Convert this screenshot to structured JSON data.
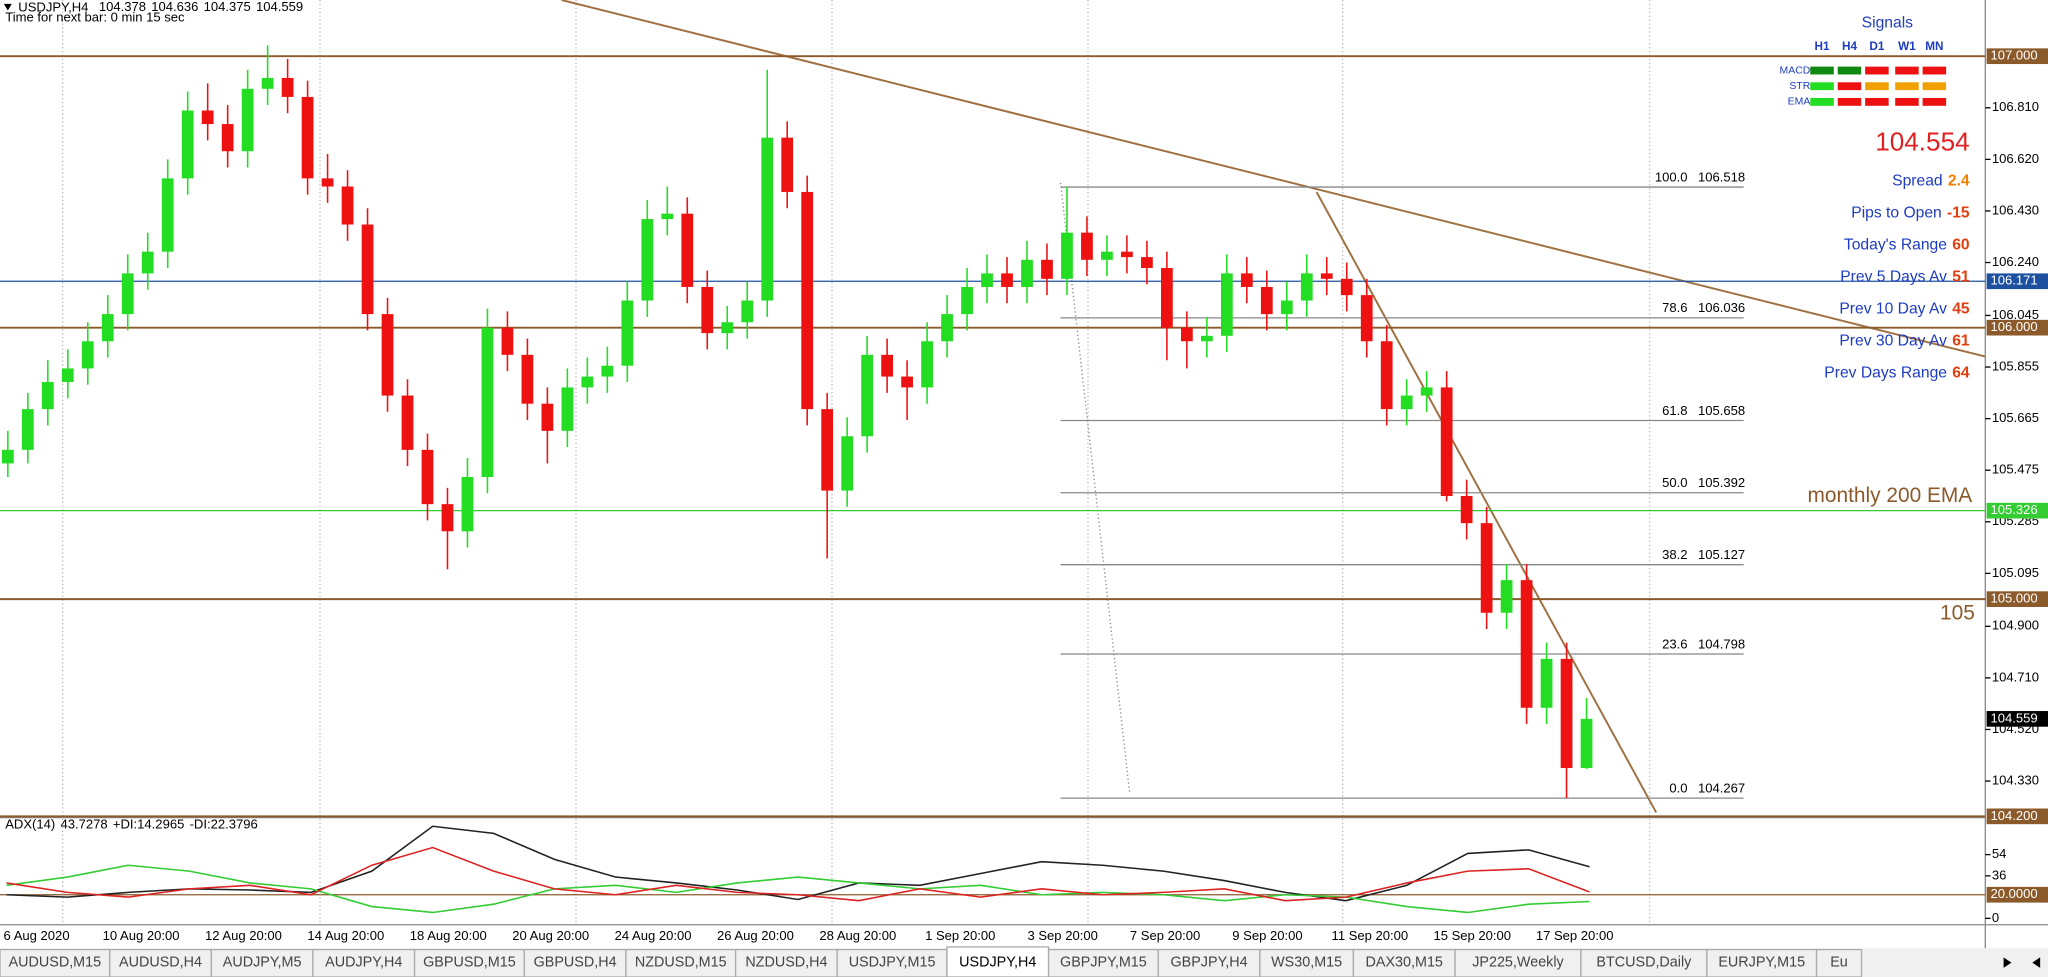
{
  "header": {
    "symbol": "USDJPY,H4",
    "ohlc": [
      104.378,
      104.636,
      104.375,
      104.559
    ],
    "timer": "Time for next bar: 0 min 15 sec"
  },
  "chart": {
    "type": "candlestick",
    "up_color": "#22dd22",
    "down_color": "#ee1111",
    "ylim": [
      104.2,
      107.207
    ],
    "yticks": [
      {
        "value": 106.81,
        "label": "106.810"
      },
      {
        "value": 106.62,
        "label": "106.620"
      },
      {
        "value": 106.43,
        "label": "106.430"
      },
      {
        "value": 106.24,
        "label": "106.240"
      },
      {
        "value": 106.045,
        "label": "106.045"
      },
      {
        "value": 105.855,
        "label": "105.855"
      },
      {
        "value": 105.665,
        "label": "105.665"
      },
      {
        "value": 105.475,
        "label": "105.475"
      },
      {
        "value": 105.285,
        "label": "105.285"
      },
      {
        "value": 105.095,
        "label": "105.095"
      },
      {
        "value": 104.9,
        "label": "104.900"
      },
      {
        "value": 104.71,
        "label": "104.710"
      },
      {
        "value": 104.52,
        "label": "104.520"
      },
      {
        "value": 104.33,
        "label": "104.330"
      }
    ],
    "levels": [
      {
        "value": 107,
        "label": "107.000",
        "color": "#8b5a2b",
        "line": true
      },
      {
        "value": 106.171,
        "label": "106.171",
        "color": "#1e50a0",
        "line": true
      },
      {
        "value": 106,
        "label": "106.000",
        "color": "#8b5a2b",
        "line": true
      },
      {
        "value": 105.326,
        "label": "105.326",
        "color": "#33cc33",
        "line": true
      },
      {
        "value": 105,
        "label": "105.000",
        "color": "#8b5a2b",
        "line": true
      },
      {
        "value": 104.559,
        "label": "104.559",
        "color": "#000000",
        "line": false
      },
      {
        "value": 104.2,
        "label": "104.200",
        "color": "#8b5a2b",
        "line": true
      }
    ],
    "fib": [
      {
        "ratio": "100.0",
        "price": 106.518
      },
      {
        "ratio": "78.6",
        "price": 106.036
      },
      {
        "ratio": "61.8",
        "price": 105.658
      },
      {
        "ratio": "50.0",
        "price": 105.392
      },
      {
        "ratio": "38.2",
        "price": 105.127
      },
      {
        "ratio": "23.6",
        "price": 104.798
      },
      {
        "ratio": "0.0",
        "price": 104.267
      }
    ],
    "candles": [
      [
        105.5,
        105.62,
        105.45,
        105.55
      ],
      [
        105.55,
        105.76,
        105.5,
        105.7
      ],
      [
        105.7,
        105.88,
        105.64,
        105.8
      ],
      [
        105.8,
        105.92,
        105.74,
        105.85
      ],
      [
        105.85,
        106.02,
        105.79,
        105.95
      ],
      [
        105.95,
        106.12,
        105.89,
        106.05
      ],
      [
        106.05,
        106.27,
        105.99,
        106.2
      ],
      [
        106.2,
        106.35,
        106.14,
        106.28
      ],
      [
        106.28,
        106.62,
        106.22,
        106.55
      ],
      [
        106.55,
        106.87,
        106.49,
        106.8
      ],
      [
        106.8,
        106.9,
        106.69,
        106.75
      ],
      [
        106.75,
        106.82,
        106.59,
        106.65
      ],
      [
        106.65,
        106.95,
        106.59,
        106.88
      ],
      [
        106.88,
        107.04,
        106.82,
        106.92
      ],
      [
        106.92,
        106.99,
        106.79,
        106.85
      ],
      [
        106.85,
        106.91,
        106.49,
        106.55
      ],
      [
        106.55,
        106.64,
        106.46,
        106.52
      ],
      [
        106.52,
        106.58,
        106.32,
        106.38
      ],
      [
        106.38,
        106.44,
        105.99,
        106.05
      ],
      [
        106.05,
        106.11,
        105.69,
        105.75
      ],
      [
        105.75,
        105.81,
        105.49,
        105.55
      ],
      [
        105.55,
        105.61,
        105.29,
        105.35
      ],
      [
        105.35,
        105.41,
        105.11,
        105.25
      ],
      [
        105.25,
        105.52,
        105.19,
        105.45
      ],
      [
        105.45,
        106.07,
        105.39,
        106.0
      ],
      [
        106.0,
        106.06,
        105.84,
        105.9
      ],
      [
        105.9,
        105.96,
        105.66,
        105.72
      ],
      [
        105.72,
        105.78,
        105.5,
        105.62
      ],
      [
        105.62,
        105.85,
        105.56,
        105.78
      ],
      [
        105.78,
        105.89,
        105.72,
        105.82
      ],
      [
        105.82,
        105.93,
        105.76,
        105.86
      ],
      [
        105.86,
        106.17,
        105.8,
        106.1
      ],
      [
        106.1,
        106.47,
        106.04,
        106.4
      ],
      [
        106.4,
        106.52,
        106.34,
        106.42
      ],
      [
        106.42,
        106.48,
        106.09,
        106.15
      ],
      [
        106.15,
        106.21,
        105.92,
        105.98
      ],
      [
        105.98,
        106.08,
        105.92,
        106.02
      ],
      [
        106.02,
        106.17,
        105.96,
        106.1
      ],
      [
        106.1,
        106.95,
        106.04,
        106.7
      ],
      [
        106.7,
        106.76,
        106.44,
        106.5
      ],
      [
        106.5,
        106.56,
        105.64,
        105.7
      ],
      [
        105.7,
        105.76,
        105.15,
        105.4
      ],
      [
        105.4,
        105.67,
        105.34,
        105.6
      ],
      [
        105.6,
        105.97,
        105.54,
        105.9
      ],
      [
        105.9,
        105.96,
        105.76,
        105.82
      ],
      [
        105.82,
        105.88,
        105.66,
        105.78
      ],
      [
        105.78,
        106.02,
        105.72,
        105.95
      ],
      [
        105.95,
        106.12,
        105.89,
        106.05
      ],
      [
        106.05,
        106.22,
        105.99,
        106.15
      ],
      [
        106.15,
        106.27,
        106.09,
        106.2
      ],
      [
        106.2,
        106.26,
        106.09,
        106.15
      ],
      [
        106.15,
        106.32,
        106.09,
        106.25
      ],
      [
        106.25,
        106.31,
        106.12,
        106.18
      ],
      [
        106.18,
        106.52,
        106.12,
        106.35
      ],
      [
        106.35,
        106.41,
        106.19,
        106.25
      ],
      [
        106.25,
        106.34,
        106.19,
        106.28
      ],
      [
        106.28,
        106.34,
        106.2,
        106.26
      ],
      [
        106.26,
        106.32,
        106.16,
        106.22
      ],
      [
        106.22,
        106.28,
        105.88,
        106.0
      ],
      [
        106.0,
        106.06,
        105.85,
        105.95
      ],
      [
        105.95,
        106.04,
        105.89,
        105.97
      ],
      [
        105.97,
        106.27,
        105.91,
        106.2
      ],
      [
        106.2,
        106.26,
        106.09,
        106.15
      ],
      [
        106.15,
        106.21,
        105.99,
        106.05
      ],
      [
        106.05,
        106.17,
        105.99,
        106.1
      ],
      [
        106.1,
        106.27,
        106.04,
        106.2
      ],
      [
        106.2,
        106.26,
        106.12,
        106.18
      ],
      [
        106.18,
        106.24,
        106.06,
        106.12
      ],
      [
        106.12,
        106.18,
        105.89,
        105.95
      ],
      [
        105.95,
        106.01,
        105.64,
        105.7
      ],
      [
        105.7,
        105.81,
        105.64,
        105.75
      ],
      [
        105.75,
        105.84,
        105.69,
        105.78
      ],
      [
        105.78,
        105.84,
        105.36,
        105.38
      ],
      [
        105.38,
        105.44,
        105.22,
        105.28
      ],
      [
        105.28,
        105.34,
        104.89,
        104.95
      ],
      [
        104.95,
        105.13,
        104.89,
        105.07
      ],
      [
        105.07,
        105.13,
        104.54,
        104.6
      ],
      [
        104.6,
        104.84,
        104.54,
        104.78
      ],
      [
        104.78,
        104.84,
        104.267,
        104.378
      ],
      [
        104.378,
        104.636,
        104.375,
        104.559
      ]
    ],
    "dates": [
      "6 Aug 2020",
      "10 Aug 20:00",
      "12 Aug 20:00",
      "14 Aug 20:00",
      "18 Aug 20:00",
      "20 Aug 20:00",
      "24 Aug 20:00",
      "26 Aug 20:00",
      "28 Aug 20:00",
      "1 Sep 20:00",
      "3 Sep 20:00",
      "7 Sep 20:00",
      "9 Sep 20:00",
      "11 Sep 20:00",
      "15 Sep 20:00",
      "17 Sep 20:00"
    ]
  },
  "adx": {
    "type": "line",
    "ylim": [
      -5.4,
      85.3
    ],
    "yticks": [
      54,
      36,
      {
        "value": 20,
        "label": "20.0000"
      },
      0
    ],
    "series": [
      {
        "name": "ADX(14)",
        "color": "#222222",
        "values": [
          20,
          18,
          22,
          25,
          24,
          22,
          40,
          78,
          72,
          50,
          35,
          30,
          24,
          16,
          30,
          28,
          38,
          48,
          45,
          40,
          32,
          22,
          15,
          28,
          55,
          58,
          43.7278
        ]
      },
      {
        "name": "+DI:",
        "color": "#33cc33",
        "values": [
          28,
          35,
          45,
          40,
          30,
          25,
          10,
          5,
          12,
          25,
          28,
          22,
          30,
          35,
          30,
          25,
          28,
          20,
          22,
          20,
          15,
          20,
          18,
          10,
          5,
          12,
          14.2965
        ]
      },
      {
        "name": "-DI:",
        "color": "#dd2222",
        "values": [
          30,
          22,
          18,
          25,
          28,
          20,
          45,
          60,
          40,
          25,
          20,
          28,
          22,
          20,
          15,
          25,
          18,
          25,
          20,
          22,
          25,
          15,
          18,
          30,
          40,
          42,
          22.3796
        ]
      }
    ]
  },
  "signals": {
    "title": "Signals",
    "columns": [
      "H1",
      "H4",
      "D1",
      "W1",
      "MN"
    ],
    "rows": [
      {
        "name": "MACD",
        "colors": [
          "#118811",
          "#118811",
          "#ee1111",
          "#ee1111",
          "#ee1111"
        ]
      },
      {
        "name": "STR",
        "colors": [
          "#22dd22",
          "#ee1111",
          "#f0a000",
          "#f0a000",
          "#f0a000"
        ]
      },
      {
        "name": "EMA",
        "colors": [
          "#22dd22",
          "#ee1111",
          "#ee1111",
          "#ee1111",
          "#ee1111"
        ]
      }
    ]
  },
  "info": {
    "price": 104.554,
    "rows": [
      {
        "label": "Spread",
        "value": 2.4,
        "color": "#f08000"
      },
      {
        "label": "Pips to Open",
        "value": -15,
        "color": "#e04010"
      },
      {
        "label": "Today's Range",
        "value": 60,
        "color": "#e04010"
      },
      {
        "label": "Prev 5 Days Av",
        "value": 51,
        "color": "#e04010"
      },
      {
        "label": "Prev 10 Day Av",
        "value": 45,
        "color": "#e04010"
      },
      {
        "label": "Prev 30 Day Av",
        "value": 61,
        "color": "#e04010"
      },
      {
        "label": "Prev Days Range",
        "value": 64,
        "color": "#e04010"
      }
    ]
  },
  "annotations": [
    "monthly 200 EMA",
    "105"
  ],
  "tabs": {
    "items": [
      "AUDUSD,M15",
      "AUDUSD,H4",
      "AUDJPY,M5",
      "AUDJPY,H4",
      "GBPUSD,M15",
      "GBPUSD,H4",
      "NZDUSD,M15",
      "NZDUSD,H4",
      "USDJPY,M15",
      "USDJPY,H4",
      "GBPJPY,M15",
      "GBPJPY,H4",
      "WS30,M15",
      "DAX30,M15",
      "JP225,Weekly",
      "BTCUSD,Daily",
      "EURJPY,M15",
      "Eu"
    ],
    "active": 9
  }
}
